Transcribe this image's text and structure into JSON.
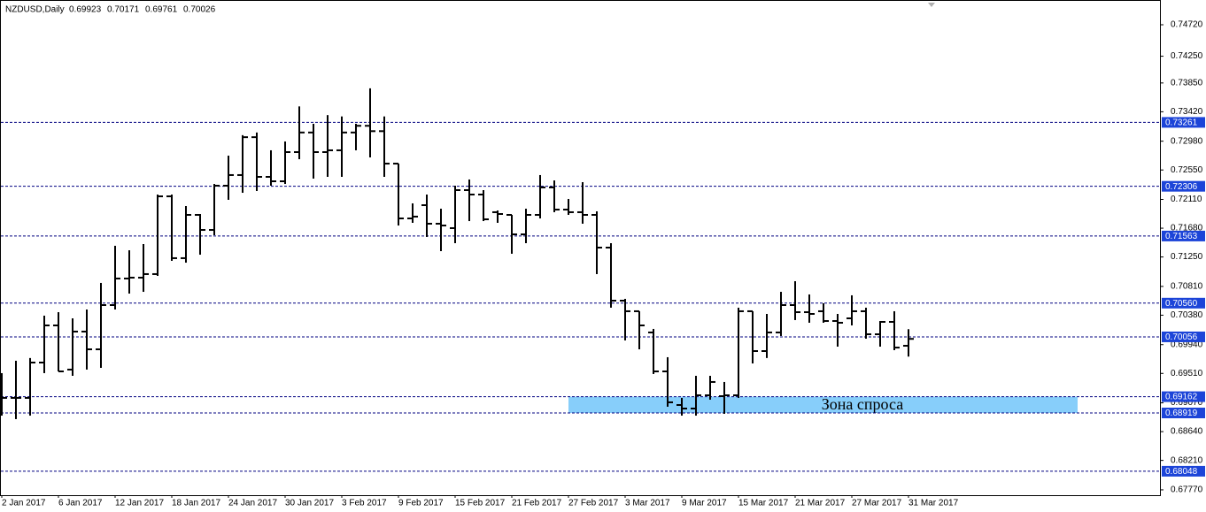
{
  "chart_data": {
    "type": "ohlc",
    "title": "NZDUSD,Daily",
    "categories": [
      "2 Jan 2017",
      null,
      null,
      null,
      "6 Jan 2017",
      null,
      null,
      null,
      "12 Jan 2017",
      null,
      null,
      null,
      "18 Jan 2017",
      null,
      null,
      null,
      "24 Jan 2017",
      null,
      null,
      null,
      "30 Jan 2017",
      null,
      null,
      null,
      "3 Feb 2017",
      null,
      null,
      null,
      "9 Feb 2017",
      null,
      null,
      null,
      "15 Feb 2017",
      null,
      null,
      null,
      "21 Feb 2017",
      null,
      null,
      null,
      "27 Feb 2017",
      null,
      null,
      null,
      "3 Mar 2017",
      null,
      null,
      null,
      "9 Mar 2017",
      null,
      null,
      null,
      "15 Mar 2017",
      null,
      null,
      null,
      "21 Mar 2017",
      null,
      null,
      null,
      "27 Mar 2017",
      null,
      null,
      null,
      "31 Mar 2017"
    ],
    "open": [
      0.69144,
      0.69144,
      0.69144,
      0.69672,
      0.70227,
      0.69567,
      0.70135,
      0.6987,
      0.70531,
      0.70928,
      0.70941,
      0.70994,
      0.72156,
      0.71232,
      0.71879,
      0.71654,
      0.72315,
      0.72474,
      0.7304,
      0.72447,
      0.72381,
      0.72817,
      0.7311,
      0.72817,
      0.72844,
      0.7311,
      0.7321,
      0.7313,
      0.72645,
      0.71826,
      0.72024,
      0.71747,
      0.71681,
      0.72249,
      0.72183,
      0.71919,
      0.71879,
      0.71588,
      0.71879,
      0.72289,
      0.71958,
      0.71919,
      0.71879,
      0.7139,
      0.70597,
      0.70439,
      0.70122,
      0.6954,
      0.69038,
      0.68985,
      0.69183,
      0.6917,
      0.69183,
      0.70439,
      0.69844,
      0.70122,
      0.70531,
      0.70425,
      0.70439,
      0.70293,
      0.70333,
      0.70439,
      0.70095,
      0.7028,
      0.69923
    ],
    "high": [
      0.69514,
      0.69699,
      0.6974,
      0.70373,
      0.70425,
      0.70333,
      0.70465,
      0.70862,
      0.71417,
      0.7135,
      0.71443,
      0.72183,
      0.72183,
      0.72011,
      0.71892,
      0.72341,
      0.72764,
      0.7307,
      0.7311,
      0.72844,
      0.72976,
      0.735,
      0.7324,
      0.7337,
      0.7335,
      0.7324,
      0.7377,
      0.7335,
      0.72645,
      0.72051,
      0.72183,
      0.71971,
      0.72315,
      0.72408,
      0.72249,
      0.71945,
      0.71879,
      0.71971,
      0.72474,
      0.72394,
      0.72117,
      0.72368,
      0.71932,
      0.71456,
      0.70624,
      0.70439,
      0.70175,
      0.69752,
      0.69144,
      0.69474,
      0.69474,
      0.69382,
      0.70492,
      0.70439,
      0.70399,
      0.70729,
      0.70888,
      0.7069,
      0.70558,
      0.70399,
      0.70677,
      0.70492,
      0.70293,
      0.70439,
      0.70171
    ],
    "low": [
      0.68879,
      0.68827,
      0.68879,
      0.69514,
      0.6954,
      0.69474,
      0.69567,
      0.69593,
      0.70465,
      0.70703,
      0.70729,
      0.70967,
      0.71192,
      0.71165,
      0.71284,
      0.71575,
      0.72104,
      0.72209,
      0.72236,
      0.72315,
      0.72341,
      0.72711,
      0.72421,
      0.72447,
      0.72447,
      0.72844,
      0.72738,
      0.72447,
      0.7172,
      0.7176,
      0.71549,
      0.71337,
      0.71456,
      0.71786,
      0.71786,
      0.7176,
      0.71298,
      0.71456,
      0.71826,
      0.71919,
      0.71879,
      0.71747,
      0.70994,
      0.70492,
      0.70003,
      0.6987,
      0.69501,
      0.69012,
      0.68879,
      0.68879,
      0.69117,
      0.68906,
      0.69144,
      0.69659,
      0.6974,
      0.70069,
      0.70307,
      0.70267,
      0.70267,
      0.6991,
      0.70227,
      0.70029,
      0.6991,
      0.69857,
      0.69761
    ],
    "close": [
      0.69144,
      0.69144,
      0.69672,
      0.70227,
      0.6954,
      0.70135,
      0.6987,
      0.70531,
      0.70928,
      0.70941,
      0.70994,
      0.72156,
      0.71232,
      0.71879,
      0.71654,
      0.72315,
      0.72474,
      0.7304,
      0.72447,
      0.72381,
      0.72817,
      0.7311,
      0.72817,
      0.72844,
      0.7311,
      0.7321,
      0.7313,
      0.72645,
      0.71826,
      0.71853,
      0.71747,
      0.7172,
      0.72249,
      0.72183,
      0.71813,
      0.71892,
      0.71588,
      0.71879,
      0.72289,
      0.71958,
      0.71919,
      0.71879,
      0.7139,
      0.70597,
      0.70439,
      0.70227,
      0.6954,
      0.69078,
      0.68985,
      0.69183,
      0.69382,
      0.69183,
      0.70439,
      0.69844,
      0.70122,
      0.70531,
      0.70425,
      0.70399,
      0.70293,
      0.70267,
      0.70439,
      0.70095,
      0.7028,
      0.69896,
      0.70026
    ],
    "color": "#000000",
    "ylim": [
      0.6769,
      0.7509
    ],
    "yticks": [
      {
        "value": 0.7472,
        "label": "0.74720"
      },
      {
        "value": 0.7425,
        "label": "0.74250"
      },
      {
        "value": 0.7385,
        "label": "0.73850"
      },
      {
        "value": 0.7342,
        "label": "0.73420"
      },
      {
        "value": 0.7298,
        "label": "0.72980"
      },
      {
        "value": 0.7255,
        "label": "0.72550"
      },
      {
        "value": 0.7211,
        "label": "0.72110"
      },
      {
        "value": 0.7168,
        "label": "0.71680"
      },
      {
        "value": 0.7125,
        "label": "0.71250"
      },
      {
        "value": 0.7081,
        "label": "0.70810"
      },
      {
        "value": 0.7038,
        "label": "0.70380"
      },
      {
        "value": 0.6994,
        "label": "0.69940"
      },
      {
        "value": 0.6951,
        "label": "0.69510"
      },
      {
        "value": 0.6907,
        "label": "0.69070"
      },
      {
        "value": 0.6864,
        "label": "0.68640"
      },
      {
        "value": 0.6821,
        "label": "0.68210"
      },
      {
        "value": 0.6777,
        "label": "0.67770"
      }
    ],
    "levels": [
      0.73261,
      0.72306,
      0.71563,
      0.7056,
      0.70056,
      0.69162,
      0.68919
    ],
    "level_labels": [
      "0.73261",
      "0.72306",
      "0.71563",
      "0.70560",
      "0.70056",
      "0.69162",
      "0.68919"
    ],
    "extra_levels": [
      0.68048
    ],
    "level_color": "#000080",
    "level_label_color": "#1c44d8",
    "zone": {
      "label": "Зона спроса",
      "range": [
        0.68919,
        0.69162
      ],
      "color": "#87cefa"
    }
  }
}
